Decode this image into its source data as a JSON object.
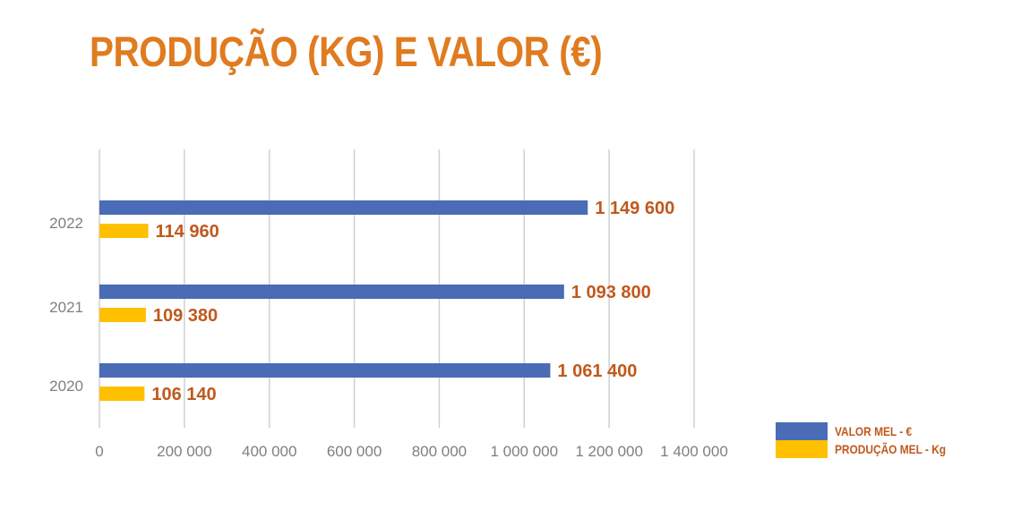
{
  "title": "PRODUÇÃO (KG) E VALOR (€)",
  "colors": {
    "title": "#e07b1f",
    "valor": "#4a6bb5",
    "producao": "#ffc000",
    "data_label": "#c0591c",
    "grid": "#d0d0d0",
    "tick_label": "#7f7f7f"
  },
  "legend": [
    {
      "label": "VALOR MEL - €",
      "color": "#4a6bb5"
    },
    {
      "label": "PRODUÇÃO MEL - Kg",
      "color": "#ffc000"
    }
  ],
  "chart_data": {
    "type": "bar",
    "orientation": "horizontal",
    "title": "PRODUÇÃO (KG) E VALOR (€)",
    "categories": [
      "2022",
      "2021",
      "2020"
    ],
    "series": [
      {
        "name": "VALOR MEL - €",
        "values": [
          1149600,
          1093800,
          1061400
        ],
        "labels": [
          "1 149 600",
          "1 093 800",
          "1 061 400"
        ]
      },
      {
        "name": "PRODUÇÃO MEL - Kg",
        "values": [
          114960,
          109380,
          106140
        ],
        "labels": [
          "114 960",
          "109 380",
          "106 140"
        ]
      }
    ],
    "xlim": [
      0,
      1400000
    ],
    "x_ticks": [
      "0",
      "200 000",
      "400 000",
      "600 000",
      "800 000",
      "1 000 000",
      "1 200 000",
      "1 400 000"
    ],
    "grid": true,
    "legend_position": "bottom-right"
  }
}
